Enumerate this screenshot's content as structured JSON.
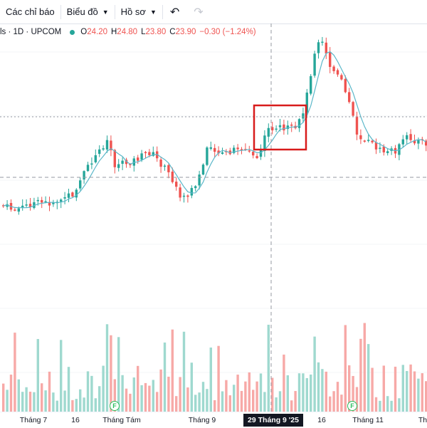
{
  "toolbar": {
    "indicators_label": "Các chỉ báo",
    "chart_type_label": "Biểu đồ",
    "profile_label": "Hồ sơ",
    "undo_icon": "undo-icon",
    "redo_icon": "redo-icon"
  },
  "legend": {
    "symbol_text": "ls · 1D · UPCOM",
    "open_key": "O",
    "open": "24.20",
    "high_key": "H",
    "high": "24.80",
    "low_key": "L",
    "low": "23.80",
    "close_key": "C",
    "close": "23.90",
    "change": "−0.30 (−1.24%)"
  },
  "x_axis": {
    "ticks": [
      "Tháng 7",
      "16",
      "Tháng Tám",
      "Tháng 9",
      "16",
      "Tháng 11",
      "Th"
    ],
    "crosshair_label": "29 Tháng 9 '25"
  },
  "badges": [
    "F",
    "F"
  ],
  "colors": {
    "up": "#26a69a",
    "down": "#ef5350",
    "volume_up": "#9fd9cf",
    "volume_down": "#f7a9a7",
    "ma_line": "#5bb7c9",
    "highlight_box": "#d81b1b"
  },
  "chart_data": {
    "type": "candlestick",
    "series": [
      {
        "name": "",
        "type": "ohlc"
      },
      {
        "name": "",
        "type": "volume"
      },
      {
        "name": "",
        "type": "moving-average"
      }
    ]
  }
}
